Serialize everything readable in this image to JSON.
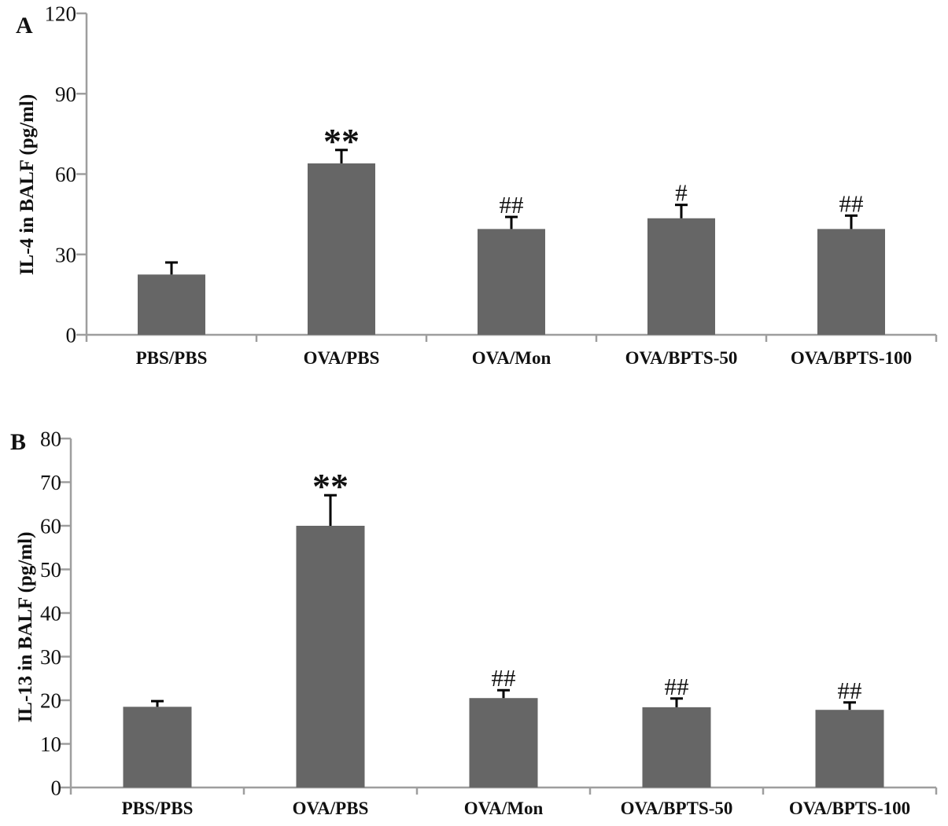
{
  "figure": {
    "background": "#ffffff",
    "bar_color": "#666666",
    "axis_color": "#9e9e9e",
    "error_bar_color": "#000000",
    "text_color": "#111111"
  },
  "chart_data": [
    {
      "type": "bar",
      "panel_label": "A",
      "title": "",
      "xlabel": "",
      "ylabel": "IL-4 in BALF (pg/ml)",
      "categories": [
        "PBS/PBS",
        "OVA/PBS",
        "OVA/Mon",
        "OVA/BPTS-50",
        "OVA/BPTS-100"
      ],
      "values": [
        22.5,
        64,
        39.5,
        43.5,
        39.5
      ],
      "errors": [
        4.5,
        5,
        4.5,
        5,
        5
      ],
      "annotations": [
        "",
        "**",
        "##",
        "#",
        "##"
      ],
      "ylim": [
        0,
        120
      ],
      "yticks": [
        0,
        30,
        60,
        90,
        120
      ],
      "grid": false,
      "legend": null
    },
    {
      "type": "bar",
      "panel_label": "B",
      "title": "",
      "xlabel": "",
      "ylabel": "IL-13 in BALF (pg/ml)",
      "categories": [
        "PBS/PBS",
        "OVA/PBS",
        "OVA/Mon",
        "OVA/BPTS-50",
        "OVA/BPTS-100"
      ],
      "values": [
        18.5,
        60,
        20.5,
        18.4,
        17.8
      ],
      "errors": [
        1.3,
        7,
        1.8,
        2,
        1.7
      ],
      "annotations": [
        "",
        "**",
        "##",
        "##",
        "##"
      ],
      "ylim": [
        0,
        80
      ],
      "yticks": [
        0,
        10,
        20,
        30,
        40,
        50,
        60,
        70,
        80
      ],
      "grid": false,
      "legend": null
    }
  ]
}
